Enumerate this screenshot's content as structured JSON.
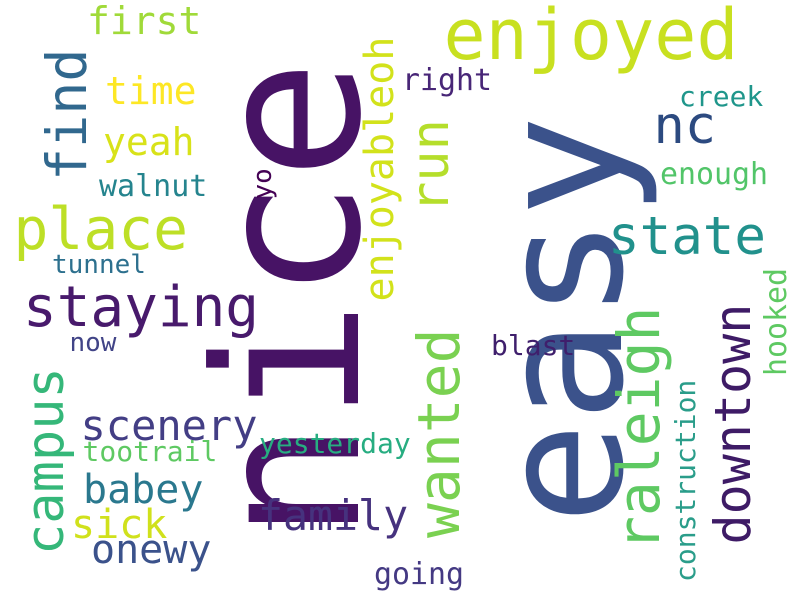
{
  "words": [
    {
      "text": "easy",
      "color": "#3b528b",
      "vertical": true
    },
    {
      "text": "nice",
      "color": "#471365",
      "vertical": true
    },
    {
      "text": "enjoyed",
      "color": "#c8e020",
      "vertical": false
    },
    {
      "text": "staying",
      "color": "#481a6c",
      "vertical": false
    },
    {
      "text": "place",
      "color": "#bddf26",
      "vertical": false
    },
    {
      "text": "state",
      "color": "#21918c",
      "vertical": false
    },
    {
      "text": "downtown",
      "color": "#3e1b66",
      "vertical": true
    },
    {
      "text": "raleigh",
      "color": "#5ec962",
      "vertical": true
    },
    {
      "text": "campus",
      "color": "#35b779",
      "vertical": true
    },
    {
      "text": "wanted",
      "color": "#7ad151",
      "vertical": true
    },
    {
      "text": "run",
      "color": "#b5de2b",
      "vertical": true
    },
    {
      "text": "find",
      "color": "#31688e",
      "vertical": true
    },
    {
      "text": "nc",
      "color": "#2c4a80",
      "vertical": false
    },
    {
      "text": "family",
      "color": "#46327e",
      "vertical": false
    },
    {
      "text": "scenery",
      "color": "#433e85",
      "vertical": false
    },
    {
      "text": "babey",
      "color": "#2a788e",
      "vertical": false
    },
    {
      "text": "onewy",
      "color": "#3b528b",
      "vertical": false
    },
    {
      "text": "first",
      "color": "#a0da39",
      "vertical": false
    },
    {
      "text": "time",
      "color": "#fde725",
      "vertical": false
    },
    {
      "text": "yeah",
      "color": "#d8e219",
      "vertical": false
    },
    {
      "text": "sick",
      "color": "#d0e11c",
      "vertical": false
    },
    {
      "text": "enjoyableoh",
      "color": "#d2e21b",
      "vertical": true
    },
    {
      "text": "construction",
      "color": "#2a9d8a",
      "vertical": true
    },
    {
      "text": "walnut",
      "color": "#25848e",
      "vertical": false
    },
    {
      "text": "tunnel",
      "color": "#2d708e",
      "vertical": false
    },
    {
      "text": "yesterday",
      "color": "#27ad81",
      "vertical": false
    },
    {
      "text": "tootrail",
      "color": "#5ec962",
      "vertical": false
    },
    {
      "text": "blast",
      "color": "#3f1f6c",
      "vertical": false
    },
    {
      "text": "now",
      "color": "#414487",
      "vertical": false
    },
    {
      "text": "going",
      "color": "#443983",
      "vertical": false
    },
    {
      "text": "creek",
      "color": "#1f968b",
      "vertical": false
    },
    {
      "text": "enough",
      "color": "#52c569",
      "vertical": false
    },
    {
      "text": "hooked",
      "color": "#5ec962",
      "vertical": true
    },
    {
      "text": "right",
      "color": "#482677",
      "vertical": false
    },
    {
      "text": "yo",
      "color": "#440154",
      "vertical": true
    }
  ]
}
